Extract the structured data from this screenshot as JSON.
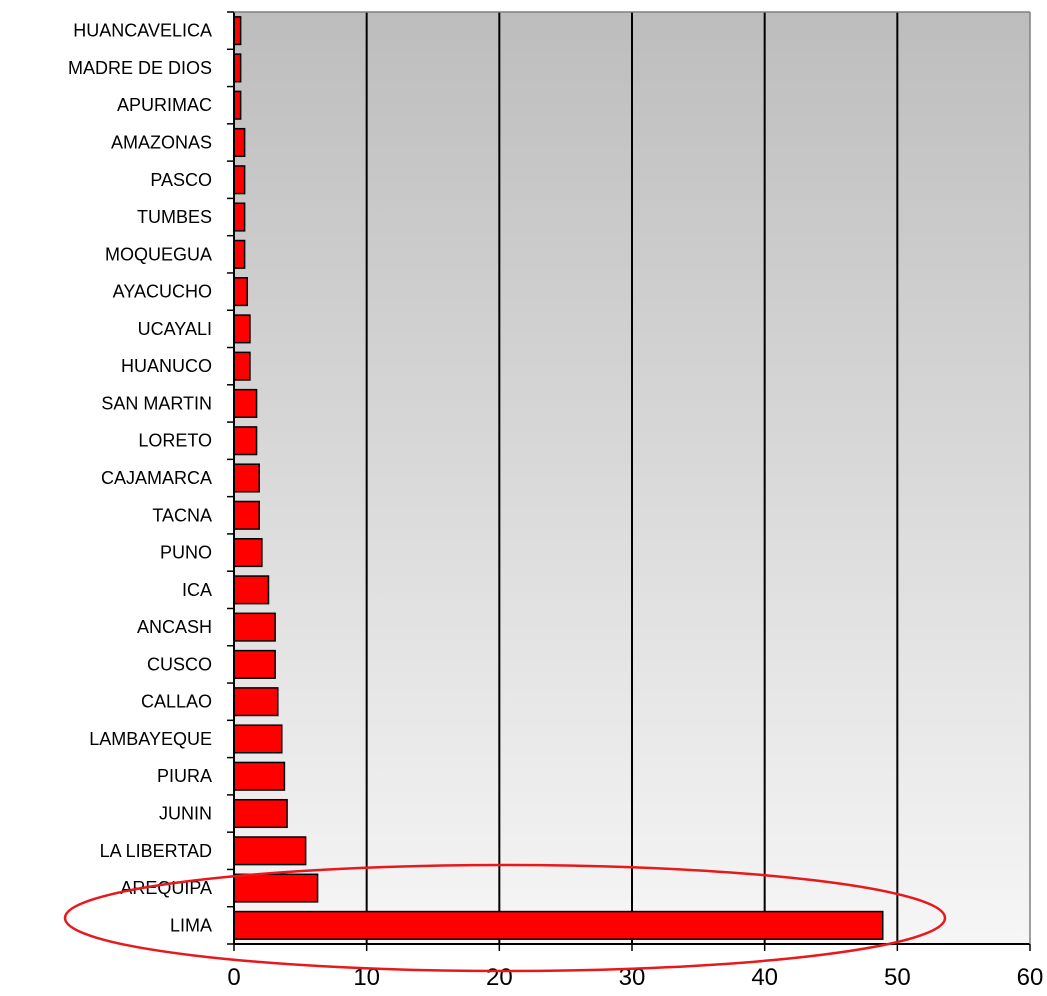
{
  "chart_data": {
    "type": "bar",
    "orientation": "horizontal",
    "title": "",
    "xlabel": "",
    "ylabel": "",
    "xlim": [
      0,
      60
    ],
    "x_ticks": [
      "0",
      "10",
      "20",
      "30",
      "40",
      "50",
      "60"
    ],
    "grid": "vertical lines at major ticks",
    "background": "gradient gray (top) to light gray (bottom)",
    "categories": [
      "HUANCAVELICA",
      "MADRE DE DIOS",
      "APURIMAC",
      "AMAZONAS",
      "PASCO",
      "TUMBES",
      "MOQUEGUA",
      "AYACUCHO",
      "UCAYALI",
      "HUANUCO",
      "SAN MARTIN",
      "LORETO",
      "CAJAMARCA",
      "TACNA",
      "PUNO",
      "ICA",
      "ANCASH",
      "CUSCO",
      "CALLAO",
      "LAMBAYEQUE",
      "PIURA",
      "JUNIN",
      "LA LIBERTAD",
      "AREQUIPA",
      "LIMA"
    ],
    "values": [
      0.5,
      0.5,
      0.5,
      0.8,
      0.8,
      0.8,
      0.8,
      1.0,
      1.2,
      1.2,
      1.7,
      1.7,
      1.9,
      1.9,
      2.1,
      2.6,
      3.1,
      3.1,
      3.3,
      3.6,
      3.8,
      4.0,
      5.4,
      6.3,
      48.9
    ],
    "bar_color": "#ff0000",
    "annotation": "red ellipse highlighting LIMA and AREQUIPA bars",
    "annotation_color": "#e8191c"
  }
}
